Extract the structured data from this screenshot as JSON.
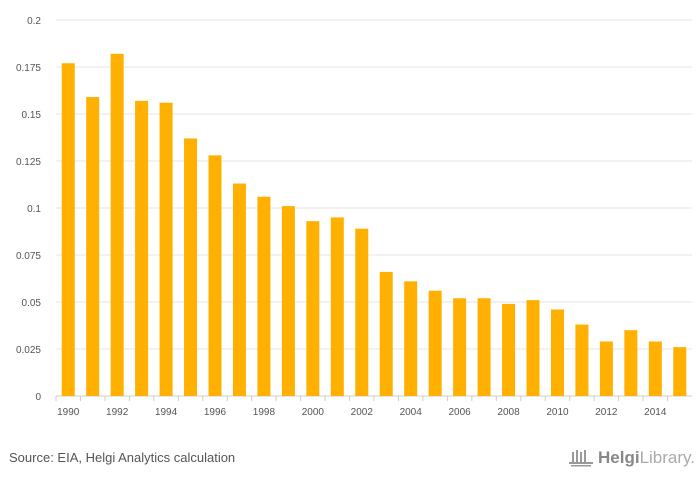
{
  "chart_data": {
    "type": "bar",
    "title": "",
    "xlabel": "",
    "ylabel": "",
    "ylim": [
      0,
      0.2
    ],
    "yticks": [
      "0",
      "0.025",
      "0.05",
      "0.075",
      "0.1",
      "0.125",
      "0.15",
      "0.175",
      "0.2"
    ],
    "categories": [
      "1990",
      "1991",
      "1992",
      "1993",
      "1994",
      "1995",
      "1996",
      "1997",
      "1998",
      "1999",
      "2000",
      "2001",
      "2002",
      "2003",
      "2004",
      "2005",
      "2006",
      "2007",
      "2008",
      "2009",
      "2010",
      "2011",
      "2012",
      "2013",
      "2014",
      "2015"
    ],
    "xtick_labels": [
      "1990",
      "1992",
      "1994",
      "1996",
      "1998",
      "2000",
      "2002",
      "2004",
      "2006",
      "2008",
      "2010",
      "2012",
      "2014"
    ],
    "values": [
      0.177,
      0.159,
      0.182,
      0.157,
      0.156,
      0.137,
      0.128,
      0.113,
      0.106,
      0.101,
      0.093,
      0.095,
      0.089,
      0.066,
      0.061,
      0.056,
      0.052,
      0.052,
      0.049,
      0.051,
      0.046,
      0.038,
      0.029,
      0.035,
      0.029,
      0.026
    ],
    "bar_color": "#FFB000",
    "grid": true
  },
  "footer": {
    "source": "Source: EIA, Helgi Analytics calculation",
    "logo_bold": "Helgi",
    "logo_light": "Library."
  }
}
